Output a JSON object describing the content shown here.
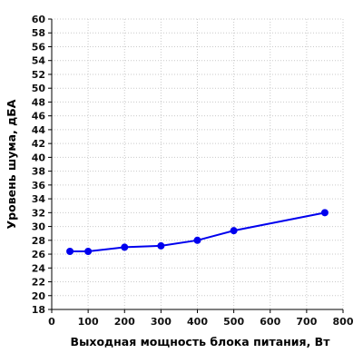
{
  "chart_data": {
    "type": "line",
    "title": "",
    "xlabel": "Выходная мощность блока питания, Вт",
    "ylabel": "Уровень шума, дБА",
    "xlim": [
      0,
      800
    ],
    "ylim": [
      18,
      60
    ],
    "x_ticks": [
      0,
      100,
      200,
      300,
      400,
      500,
      600,
      700,
      800
    ],
    "y_ticks": [
      18,
      20,
      22,
      24,
      26,
      28,
      30,
      32,
      34,
      36,
      38,
      40,
      42,
      44,
      46,
      48,
      50,
      52,
      54,
      56,
      58,
      60
    ],
    "grid": true,
    "legend": "none",
    "series": [
      {
        "color": "#0000ee",
        "x": [
          50,
          100,
          200,
          300,
          400,
          500,
          750
        ],
        "values": [
          26.4,
          26.4,
          27.0,
          27.2,
          28.0,
          29.4,
          32.0
        ]
      }
    ]
  }
}
